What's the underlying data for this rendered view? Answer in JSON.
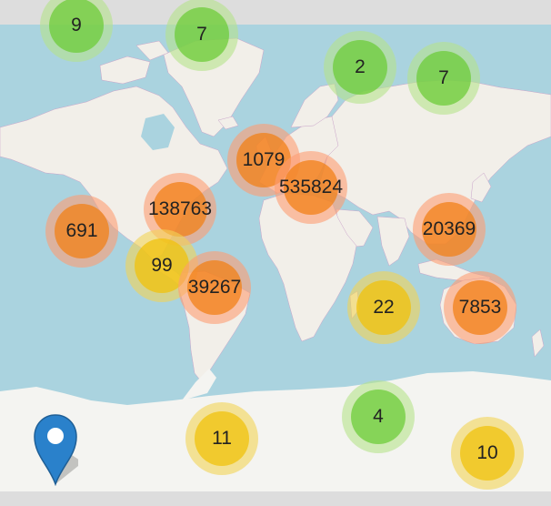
{
  "map": {
    "colors": {
      "ocean": "#aad3df",
      "land": "#f2efe9",
      "ice": "#f4f4f1",
      "border": "#c9a3c9",
      "frame": "#dddddd",
      "marker": "#2a81cb"
    },
    "clusters": [
      {
        "count": "9",
        "level": "green"
      },
      {
        "count": "7",
        "level": "green"
      },
      {
        "count": "2",
        "level": "green"
      },
      {
        "count": "7",
        "level": "green"
      },
      {
        "count": "1079",
        "level": "orange"
      },
      {
        "count": "535824",
        "level": "orange"
      },
      {
        "count": "138763",
        "level": "orange"
      },
      {
        "count": "691",
        "level": "orange"
      },
      {
        "count": "20369",
        "level": "orange"
      },
      {
        "count": "99",
        "level": "yellow"
      },
      {
        "count": "39267",
        "level": "orange"
      },
      {
        "count": "22",
        "level": "yellow"
      },
      {
        "count": "7853",
        "level": "orange"
      },
      {
        "count": "4",
        "level": "green"
      },
      {
        "count": "11",
        "level": "yellow"
      },
      {
        "count": "10",
        "level": "yellow"
      }
    ],
    "marker_icon": "map-pin-icon"
  }
}
